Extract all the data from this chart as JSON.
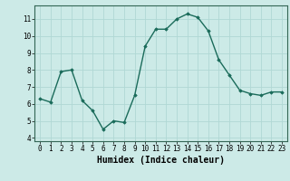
{
  "x": [
    0,
    1,
    2,
    3,
    4,
    5,
    6,
    7,
    8,
    9,
    10,
    11,
    12,
    13,
    14,
    15,
    16,
    17,
    18,
    19,
    20,
    21,
    22,
    23
  ],
  "y": [
    6.3,
    6.1,
    7.9,
    8.0,
    6.2,
    5.6,
    4.5,
    5.0,
    4.9,
    6.5,
    9.4,
    10.4,
    10.4,
    11.0,
    11.3,
    11.1,
    10.3,
    8.6,
    7.7,
    6.8,
    6.6,
    6.5,
    6.7,
    6.7
  ],
  "line_color": "#1a6b5a",
  "marker": "D",
  "markersize": 1.8,
  "linewidth": 1.0,
  "xlabel": "Humidex (Indice chaleur)",
  "xlabel_fontsize": 7,
  "ylabel_ticks": [
    4,
    5,
    6,
    7,
    8,
    9,
    10,
    11
  ],
  "xlim": [
    -0.5,
    23.5
  ],
  "ylim": [
    3.8,
    11.8
  ],
  "bg_color": "#cceae7",
  "grid_color": "#b0d8d4",
  "tick_fontsize": 5.5,
  "fig_bg": "#cceae7",
  "spine_color": "#336655"
}
